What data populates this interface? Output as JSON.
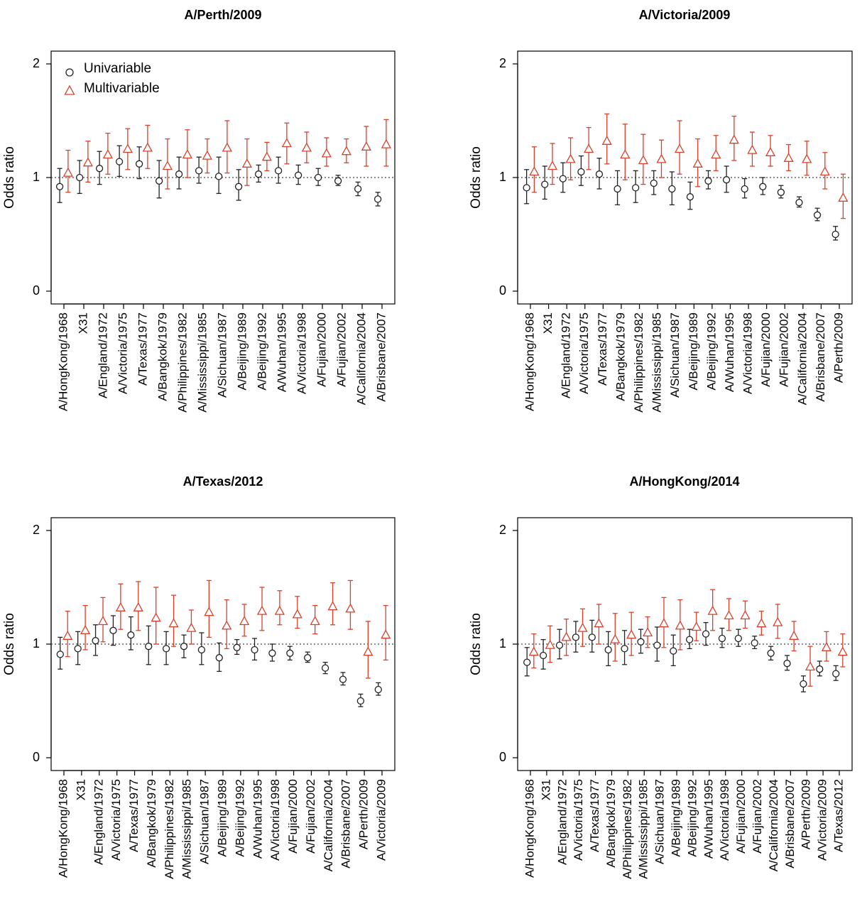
{
  "colors": {
    "univariable": "#222222",
    "multivariable": "#d9402b",
    "reference": "#444444"
  },
  "legend": {
    "univariable": "Univariable",
    "multivariable": "Multivariable",
    "placement": "top-left"
  },
  "chart_data": [
    {
      "type": "scatter",
      "title": "A/Perth/2009",
      "ylabel": "Odds ratio",
      "ylim": [
        0,
        2
      ],
      "yticks": [
        "0",
        "1",
        "2"
      ],
      "reference_line": 1,
      "categories": [
        "A/HongKong/1968",
        "X31",
        "A/England/1972",
        "A/Victoria/1975",
        "A/Texas/1977",
        "A/Bangkok/1979",
        "A/Philippines/1982",
        "A/Mississippi/1985",
        "A/Sichuan/1987",
        "A/Beijing/1989",
        "A/Beijing/1992",
        "A/Wuhan/1995",
        "A/Victoria/1998",
        "A/Fujian/2000",
        "A/Fujian/2002",
        "A/California/2004",
        "A/Brisbane/2007"
      ],
      "series": [
        {
          "name": "Univariable",
          "values": [
            0.92,
            1.0,
            1.08,
            1.14,
            1.12,
            0.97,
            1.03,
            1.06,
            1.01,
            0.92,
            1.03,
            1.06,
            1.02,
            1.0,
            0.97,
            0.9,
            0.81
          ],
          "lower": [
            0.78,
            0.86,
            0.94,
            1.01,
            0.99,
            0.82,
            0.9,
            0.95,
            0.86,
            0.8,
            0.96,
            0.95,
            0.94,
            0.93,
            0.93,
            0.84,
            0.75
          ],
          "upper": [
            1.08,
            1.15,
            1.23,
            1.28,
            1.27,
            1.15,
            1.18,
            1.18,
            1.18,
            1.07,
            1.11,
            1.18,
            1.11,
            1.08,
            1.02,
            0.96,
            0.87
          ]
        },
        {
          "name": "Multivariable",
          "values": [
            1.04,
            1.13,
            1.2,
            1.25,
            1.26,
            1.1,
            1.2,
            1.19,
            1.26,
            1.12,
            1.18,
            1.3,
            1.26,
            1.21,
            1.23,
            1.27,
            1.29
          ],
          "lower": [
            0.87,
            0.96,
            1.03,
            1.07,
            1.08,
            0.9,
            1.0,
            1.04,
            1.04,
            0.93,
            1.06,
            1.12,
            1.13,
            1.1,
            1.13,
            1.1,
            1.1
          ],
          "upper": [
            1.24,
            1.32,
            1.39,
            1.43,
            1.46,
            1.34,
            1.42,
            1.34,
            1.5,
            1.34,
            1.31,
            1.48,
            1.4,
            1.35,
            1.34,
            1.45,
            1.51
          ]
        }
      ]
    },
    {
      "type": "scatter",
      "title": "A/Victoria/2009",
      "ylabel": "Odds ratio",
      "ylim": [
        0,
        2
      ],
      "yticks": [
        "0",
        "1",
        "2"
      ],
      "reference_line": 1,
      "categories": [
        "A/HongKong/1968",
        "X31",
        "A/England/1972",
        "A/Victoria/1975",
        "A/Texas/1977",
        "A/Bangkok/1979",
        "A/Philippines/1982",
        "A/Mississippi/1985",
        "A/Sichuan/1987",
        "A/Beijing/1989",
        "A/Beijing/1992",
        "A/Wuhan/1995",
        "A/Victoria/1998",
        "A/Fujian/2000",
        "A/Fujian/2002",
        "A/California/2004",
        "A/Brisbane/2007",
        "A/Perth/2009"
      ],
      "series": [
        {
          "name": "Univariable",
          "values": [
            0.91,
            0.94,
            0.99,
            1.05,
            1.03,
            0.9,
            0.91,
            0.95,
            0.9,
            0.83,
            0.97,
            0.98,
            0.9,
            0.92,
            0.87,
            0.78,
            0.67,
            0.5
          ],
          "lower": [
            0.77,
            0.81,
            0.87,
            0.93,
            0.9,
            0.76,
            0.78,
            0.85,
            0.76,
            0.72,
            0.9,
            0.87,
            0.82,
            0.85,
            0.82,
            0.74,
            0.62,
            0.45
          ],
          "upper": [
            1.07,
            1.1,
            1.13,
            1.19,
            1.17,
            1.06,
            1.06,
            1.06,
            1.05,
            0.96,
            1.06,
            1.1,
            0.99,
            1.0,
            0.93,
            0.83,
            0.73,
            0.57
          ]
        },
        {
          "name": "Multivariable",
          "values": [
            1.05,
            1.1,
            1.16,
            1.25,
            1.32,
            1.2,
            1.15,
            1.16,
            1.25,
            1.12,
            1.2,
            1.33,
            1.24,
            1.22,
            1.17,
            1.16,
            1.05,
            0.82
          ],
          "lower": [
            0.87,
            0.94,
            0.98,
            1.07,
            1.12,
            0.98,
            0.94,
            1.0,
            1.03,
            0.92,
            1.06,
            1.15,
            1.1,
            1.1,
            1.06,
            1.02,
            0.9,
            0.64
          ],
          "upper": [
            1.27,
            1.3,
            1.35,
            1.44,
            1.56,
            1.47,
            1.38,
            1.33,
            1.5,
            1.34,
            1.37,
            1.54,
            1.4,
            1.37,
            1.29,
            1.32,
            1.22,
            1.03
          ]
        }
      ]
    },
    {
      "type": "scatter",
      "title": "A/Texas/2012",
      "ylabel": "Odds ratio",
      "ylim": [
        0,
        2
      ],
      "yticks": [
        "0",
        "1",
        "2"
      ],
      "reference_line": 1,
      "categories": [
        "A/HongKong/1968",
        "X31",
        "A/England/1972",
        "A/Victoria/1975",
        "A/Texas/1977",
        "A/Bangkok/1979",
        "A/Philippines/1982",
        "A/Mississippi/1985",
        "A/Sichuan/1987",
        "A/Beijing/1989",
        "A/Beijing/1992",
        "A/Wuhan/1995",
        "A/Victoria/1998",
        "A/Fujian/2000",
        "A/Fujian/2002",
        "A/California/2004",
        "A/Brisbane/2007",
        "A/Perth/2009",
        "A/Victoria/2009"
      ],
      "series": [
        {
          "name": "Univariable",
          "values": [
            0.91,
            0.96,
            1.03,
            1.12,
            1.08,
            0.98,
            0.96,
            0.98,
            0.95,
            0.88,
            0.97,
            0.95,
            0.92,
            0.92,
            0.88,
            0.79,
            0.69,
            0.5,
            0.6
          ],
          "lower": [
            0.78,
            0.82,
            0.9,
            0.99,
            0.95,
            0.82,
            0.82,
            0.88,
            0.82,
            0.76,
            0.91,
            0.86,
            0.85,
            0.86,
            0.84,
            0.74,
            0.64,
            0.45,
            0.55
          ],
          "upper": [
            1.06,
            1.11,
            1.17,
            1.25,
            1.24,
            1.16,
            1.11,
            1.08,
            1.1,
            1.01,
            1.04,
            1.05,
            1.0,
            0.98,
            0.93,
            0.84,
            0.75,
            0.56,
            0.66
          ]
        },
        {
          "name": "Multivariable",
          "values": [
            1.07,
            1.12,
            1.2,
            1.32,
            1.32,
            1.23,
            1.18,
            1.14,
            1.28,
            1.16,
            1.2,
            1.29,
            1.29,
            1.26,
            1.2,
            1.33,
            1.31,
            0.93,
            1.08
          ],
          "lower": [
            0.89,
            0.95,
            1.02,
            1.13,
            1.12,
            1.0,
            0.98,
            1.0,
            1.06,
            0.96,
            1.07,
            1.12,
            1.17,
            1.14,
            1.09,
            1.17,
            1.13,
            0.7,
            0.86
          ],
          "upper": [
            1.29,
            1.34,
            1.41,
            1.53,
            1.55,
            1.5,
            1.43,
            1.3,
            1.56,
            1.39,
            1.35,
            1.5,
            1.47,
            1.42,
            1.34,
            1.54,
            1.56,
            1.2,
            1.34
          ]
        }
      ]
    },
    {
      "type": "scatter",
      "title": "A/HongKong/2014",
      "ylabel": "Odds ratio",
      "ylim": [
        0,
        2
      ],
      "yticks": [
        "0",
        "1",
        "2"
      ],
      "reference_line": 1,
      "categories": [
        "A/HongKong/1968",
        "X31",
        "A/England/1972",
        "A/Victoria/1975",
        "A/Texas/1977",
        "A/Bangkok/1979",
        "A/Philippines/1982",
        "A/Mississippi/1985",
        "A/Sichuan/1987",
        "A/Beijing/1989",
        "A/Beijing/1992",
        "A/Wuhan/1995",
        "A/Victoria/1998",
        "A/Fujian/2000",
        "A/Fujian/2002",
        "A/California/2004",
        "A/Brisbane/2007",
        "A/Perth/2009",
        "A/Victoria/2009",
        "A/Texas/2012"
      ],
      "series": [
        {
          "name": "Univariable",
          "values": [
            0.84,
            0.9,
            0.99,
            1.06,
            1.06,
            0.95,
            0.96,
            1.02,
            0.99,
            0.94,
            1.04,
            1.09,
            1.05,
            1.05,
            1.01,
            0.92,
            0.83,
            0.65,
            0.78,
            0.74
          ],
          "lower": [
            0.72,
            0.78,
            0.87,
            0.93,
            0.93,
            0.81,
            0.82,
            0.92,
            0.85,
            0.81,
            0.96,
            0.99,
            0.97,
            0.98,
            0.96,
            0.86,
            0.77,
            0.58,
            0.72,
            0.68
          ],
          "upper": [
            0.97,
            1.04,
            1.13,
            1.2,
            1.21,
            1.11,
            1.12,
            1.13,
            1.15,
            1.08,
            1.13,
            1.19,
            1.14,
            1.13,
            1.07,
            0.98,
            0.9,
            0.72,
            0.85,
            0.81
          ]
        },
        {
          "name": "Multivariable",
          "values": [
            0.93,
            0.99,
            1.06,
            1.14,
            1.18,
            1.04,
            1.08,
            1.1,
            1.18,
            1.16,
            1.15,
            1.29,
            1.25,
            1.25,
            1.18,
            1.19,
            1.07,
            0.8,
            0.97,
            0.93
          ],
          "lower": [
            0.79,
            0.84,
            0.9,
            0.98,
            1.0,
            0.85,
            0.9,
            0.97,
            0.97,
            0.95,
            1.03,
            1.12,
            1.12,
            1.14,
            1.08,
            1.05,
            0.94,
            0.63,
            0.85,
            0.8
          ],
          "upper": [
            1.09,
            1.16,
            1.22,
            1.31,
            1.35,
            1.27,
            1.28,
            1.24,
            1.41,
            1.39,
            1.28,
            1.48,
            1.4,
            1.38,
            1.29,
            1.35,
            1.2,
            0.98,
            1.11,
            1.09
          ]
        }
      ]
    }
  ]
}
